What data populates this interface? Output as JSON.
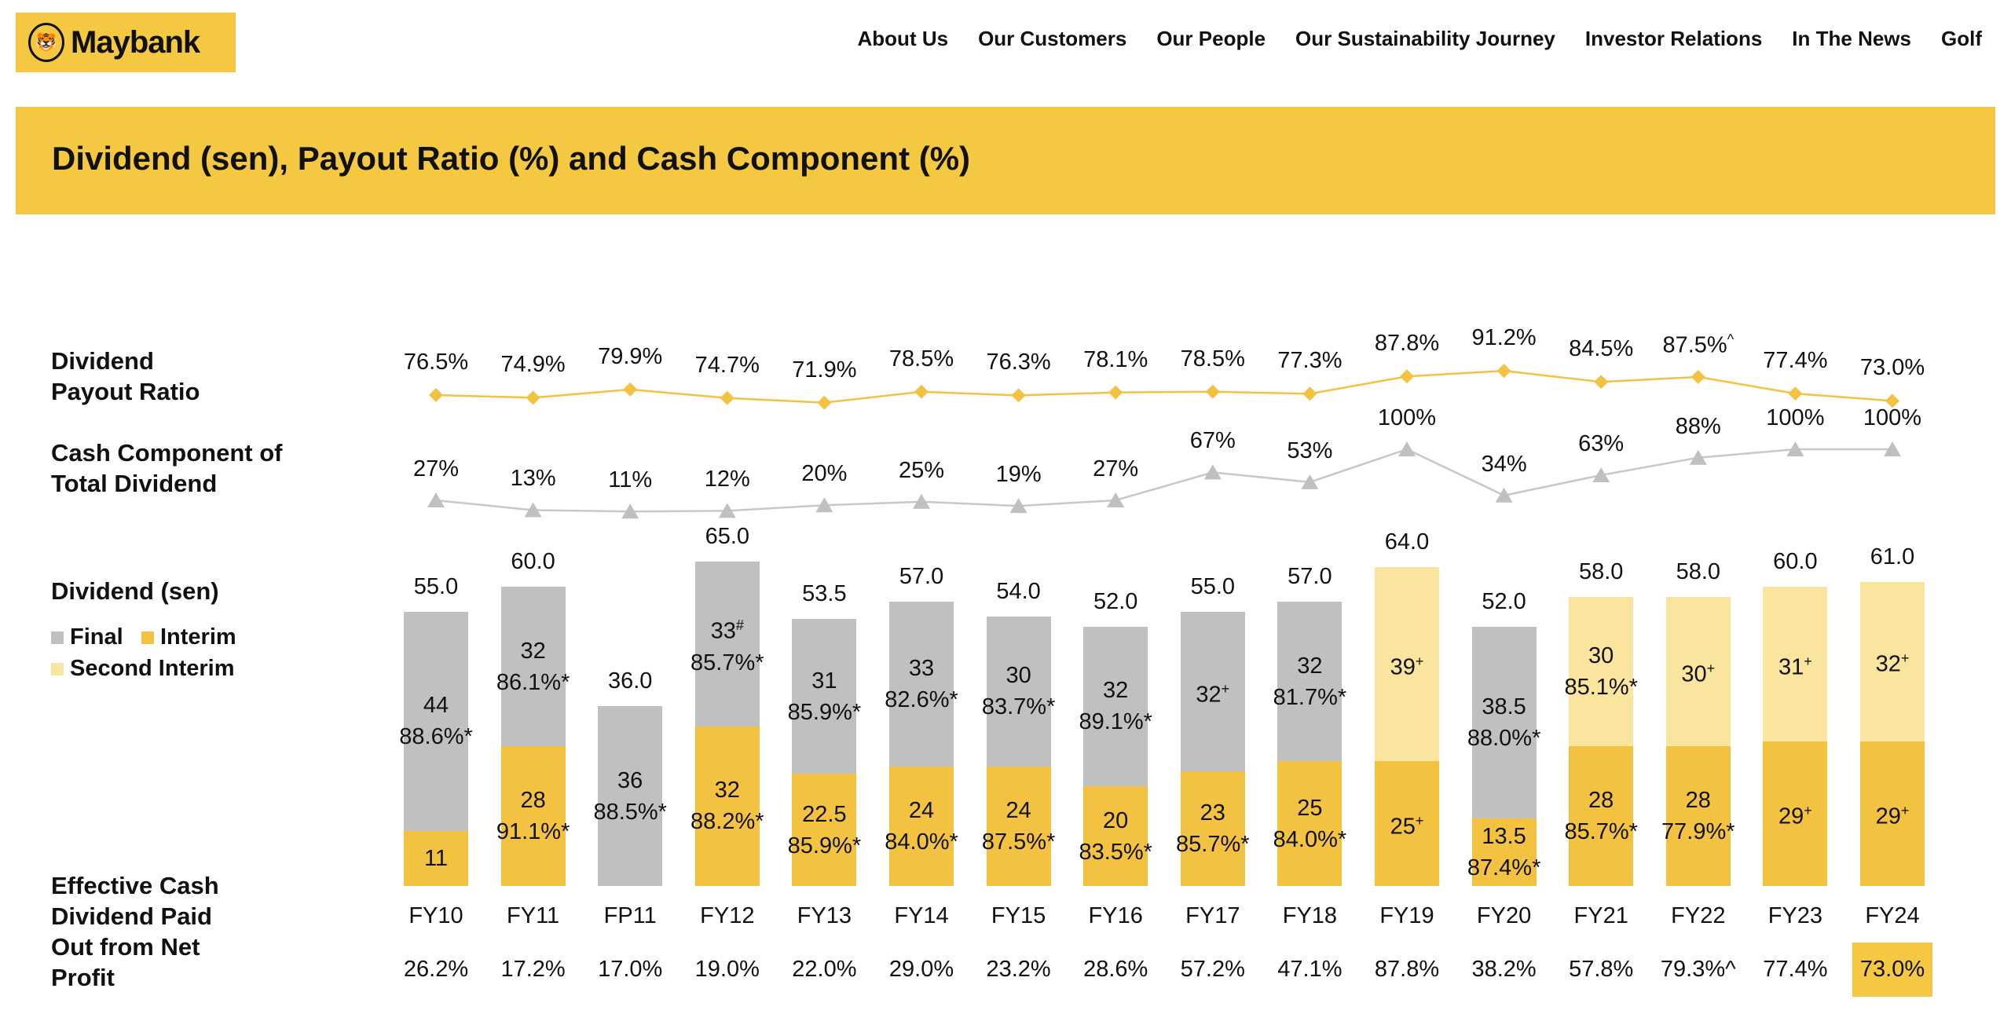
{
  "header": {
    "logo_text": "Maybank",
    "nav": [
      "About Us",
      "Our Customers",
      "Our People",
      "Our Sustainability Journey",
      "Investor Relations",
      "In The News",
      "Golf"
    ]
  },
  "banner": {
    "title": "Dividend (sen), Payout Ratio (%) and Cash Component (%)"
  },
  "labels": {
    "payout": [
      "Dividend",
      "Payout Ratio"
    ],
    "cash": [
      "Cash Component of",
      "Total Dividend"
    ],
    "dividend": "Dividend (sen)",
    "effective": [
      "Effective Cash",
      "Dividend Paid",
      "Out from Net",
      "Profit"
    ]
  },
  "legend": [
    {
      "name": "Final",
      "color": "#c0c0c0"
    },
    {
      "name": "Interim",
      "color": "#f2c240"
    },
    {
      "name": "Second Interim",
      "color": "#fae59f"
    }
  ],
  "colors": {
    "brand": "#f5c842",
    "final": "#c0c0c0",
    "interim": "#f2c240",
    "second_interim": "#fae59f",
    "payout_line": "#f2c240",
    "cash_line": "#c8c8c8"
  },
  "chart_data": {
    "type": "bar",
    "categories": [
      "FY10",
      "FY11",
      "FP11",
      "FY12",
      "FY13",
      "FY14",
      "FY15",
      "FY16",
      "FY17",
      "FY18",
      "FY19",
      "FY20",
      "FY21",
      "FY22",
      "FY23",
      "FY24"
    ],
    "totals": [
      "55.0",
      "60.0",
      "36.0",
      "65.0",
      "53.5",
      "57.0",
      "54.0",
      "52.0",
      "55.0",
      "57.0",
      "64.0",
      "52.0",
      "58.0",
      "58.0",
      "60.0",
      "61.0"
    ],
    "bars": [
      {
        "interim": {
          "value": 11,
          "mark": "",
          "ratio": ""
        },
        "final": {
          "value": 44,
          "mark": "",
          "ratio": "88.6%*"
        }
      },
      {
        "interim": {
          "value": 28,
          "mark": "",
          "ratio": "91.1%*"
        },
        "final": {
          "value": 32,
          "mark": "",
          "ratio": "86.1%*"
        }
      },
      {
        "final": {
          "value": 36,
          "mark": "",
          "ratio": "88.5%*"
        }
      },
      {
        "interim": {
          "value": 32,
          "mark": "",
          "ratio": "88.2%*"
        },
        "final": {
          "value": 33,
          "mark": "#",
          "ratio": "85.7%*"
        }
      },
      {
        "interim": {
          "value": 22.5,
          "mark": "",
          "ratio": "85.9%*"
        },
        "final": {
          "value": 31,
          "mark": "",
          "ratio": "85.9%*"
        }
      },
      {
        "interim": {
          "value": 24,
          "mark": "",
          "ratio": "84.0%*"
        },
        "final": {
          "value": 33,
          "mark": "",
          "ratio": "82.6%*"
        }
      },
      {
        "interim": {
          "value": 24,
          "mark": "",
          "ratio": "87.5%*"
        },
        "final": {
          "value": 30,
          "mark": "",
          "ratio": "83.7%*"
        }
      },
      {
        "interim": {
          "value": 20,
          "mark": "",
          "ratio": "83.5%*"
        },
        "final": {
          "value": 32,
          "mark": "",
          "ratio": "89.1%*"
        }
      },
      {
        "interim": {
          "value": 23,
          "mark": "",
          "ratio": "85.7%*"
        },
        "final": {
          "value": 32,
          "mark": "+",
          "ratio": ""
        }
      },
      {
        "interim": {
          "value": 25,
          "mark": "",
          "ratio": "84.0%*"
        },
        "final": {
          "value": 32,
          "mark": "",
          "ratio": "81.7%*"
        }
      },
      {
        "interim": {
          "value": 25,
          "mark": "+",
          "ratio": ""
        },
        "second_interim": {
          "value": 39,
          "mark": "+",
          "ratio": ""
        }
      },
      {
        "interim": {
          "value": 13.5,
          "mark": "",
          "ratio": "87.4%*"
        },
        "final": {
          "value": 38.5,
          "mark": "",
          "ratio": "88.0%*"
        }
      },
      {
        "interim": {
          "value": 28,
          "mark": "",
          "ratio": "85.7%*"
        },
        "second_interim": {
          "value": 30,
          "mark": "",
          "ratio": "85.1%*"
        }
      },
      {
        "interim": {
          "value": 28,
          "mark": "",
          "ratio": "77.9%*"
        },
        "second_interim": {
          "value": 30,
          "mark": "+",
          "ratio": ""
        }
      },
      {
        "interim": {
          "value": 29,
          "mark": "+",
          "ratio": ""
        },
        "second_interim": {
          "value": 31,
          "mark": "+",
          "ratio": ""
        }
      },
      {
        "interim": {
          "value": 29,
          "mark": "+",
          "ratio": ""
        },
        "second_interim": {
          "value": 32,
          "mark": "+",
          "ratio": ""
        }
      }
    ],
    "payout_ratio": [
      76.5,
      74.9,
      79.9,
      74.7,
      71.9,
      78.5,
      76.3,
      78.1,
      78.5,
      77.3,
      87.8,
      91.2,
      84.5,
      87.5,
      77.4,
      73.0
    ],
    "payout_marks": [
      "",
      "",
      "",
      "",
      "",
      "",
      "",
      "",
      "",
      "",
      "",
      "",
      "",
      "^",
      "",
      ""
    ],
    "cash_component": [
      27,
      13,
      11,
      12,
      20,
      25,
      19,
      27,
      67,
      53,
      100,
      34,
      63,
      88,
      100,
      100
    ],
    "effective_cash_payout": [
      "26.2%",
      "17.2%",
      "17.0%",
      "19.0%",
      "22.0%",
      "29.0%",
      "23.2%",
      "28.6%",
      "57.2%",
      "47.1%",
      "87.8%",
      "38.2%",
      "57.8%",
      "79.3%^",
      "77.4%",
      "73.0%"
    ],
    "highlighted_category": "FY24",
    "ylabel": "Dividend (sen)"
  }
}
